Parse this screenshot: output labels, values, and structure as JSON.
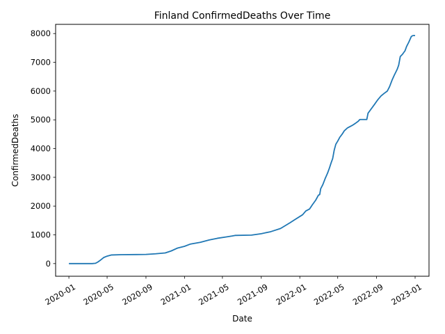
{
  "chart_data": {
    "type": "line",
    "title": "Finland  ConfirmedDeaths Over Time",
    "xlabel": "Date",
    "ylabel": "ConfirmedDeaths",
    "xlim": [
      "2019-11-20",
      "2023-02-14"
    ],
    "ylim": [
      -440,
      8320
    ],
    "x_ticks": [
      "2020-01",
      "2020-05",
      "2020-09",
      "2021-01",
      "2021-05",
      "2021-09",
      "2022-01",
      "2022-05",
      "2022-09",
      "2023-01"
    ],
    "y_ticks": [
      0,
      1000,
      2000,
      3000,
      4000,
      5000,
      6000,
      7000,
      8000
    ],
    "grid": false,
    "series": [
      {
        "color": "#1f77b4",
        "points": [
          [
            "2020-01-01",
            0
          ],
          [
            "2020-03-15",
            0
          ],
          [
            "2020-03-25",
            10
          ],
          [
            "2020-04-01",
            50
          ],
          [
            "2020-04-10",
            120
          ],
          [
            "2020-04-20",
            210
          ],
          [
            "2020-05-01",
            260
          ],
          [
            "2020-05-15",
            300
          ],
          [
            "2020-06-15",
            310
          ],
          [
            "2020-08-01",
            315
          ],
          [
            "2020-09-01",
            320
          ],
          [
            "2020-10-01",
            340
          ],
          [
            "2020-11-01",
            370
          ],
          [
            "2020-11-20",
            440
          ],
          [
            "2020-12-10",
            540
          ],
          [
            "2021-01-01",
            600
          ],
          [
            "2021-01-20",
            680
          ],
          [
            "2021-02-20",
            740
          ],
          [
            "2021-03-20",
            820
          ],
          [
            "2021-04-15",
            880
          ],
          [
            "2021-05-15",
            930
          ],
          [
            "2021-06-01",
            960
          ],
          [
            "2021-06-10",
            980
          ],
          [
            "2021-08-01",
            990
          ],
          [
            "2021-09-01",
            1040
          ],
          [
            "2021-10-01",
            1110
          ],
          [
            "2021-11-01",
            1220
          ],
          [
            "2021-12-01",
            1420
          ],
          [
            "2021-12-15",
            1520
          ],
          [
            "2022-01-10",
            1700
          ],
          [
            "2022-01-20",
            1830
          ],
          [
            "2022-02-01",
            1900
          ],
          [
            "2022-02-10",
            2050
          ],
          [
            "2022-02-20",
            2200
          ],
          [
            "2022-03-01",
            2380
          ],
          [
            "2022-03-05",
            2400
          ],
          [
            "2022-03-08",
            2600
          ],
          [
            "2022-03-15",
            2750
          ],
          [
            "2022-03-22",
            2950
          ],
          [
            "2022-03-30",
            3150
          ],
          [
            "2022-04-05",
            3330
          ],
          [
            "2022-04-10",
            3500
          ],
          [
            "2022-04-15",
            3650
          ],
          [
            "2022-04-20",
            3950
          ],
          [
            "2022-04-25",
            4150
          ],
          [
            "2022-05-01",
            4260
          ],
          [
            "2022-05-08",
            4400
          ],
          [
            "2022-05-15",
            4500
          ],
          [
            "2022-05-22",
            4620
          ],
          [
            "2022-06-01",
            4720
          ],
          [
            "2022-06-15",
            4800
          ],
          [
            "2022-06-25",
            4870
          ],
          [
            "2022-07-05",
            4950
          ],
          [
            "2022-07-10",
            5010
          ],
          [
            "2022-08-01",
            5010
          ],
          [
            "2022-08-05",
            5230
          ],
          [
            "2022-08-15",
            5380
          ],
          [
            "2022-08-25",
            5530
          ],
          [
            "2022-09-05",
            5700
          ],
          [
            "2022-09-15",
            5830
          ],
          [
            "2022-09-25",
            5920
          ],
          [
            "2022-10-05",
            6000
          ],
          [
            "2022-10-12",
            6150
          ],
          [
            "2022-10-20",
            6380
          ],
          [
            "2022-10-27",
            6550
          ],
          [
            "2022-11-05",
            6750
          ],
          [
            "2022-11-10",
            6900
          ],
          [
            "2022-11-15",
            7200
          ],
          [
            "2022-11-22",
            7280
          ],
          [
            "2022-11-30",
            7400
          ],
          [
            "2022-12-05",
            7550
          ],
          [
            "2022-12-12",
            7700
          ],
          [
            "2022-12-20",
            7900
          ],
          [
            "2022-12-25",
            7930
          ],
          [
            "2023-01-01",
            7930
          ]
        ]
      }
    ]
  }
}
